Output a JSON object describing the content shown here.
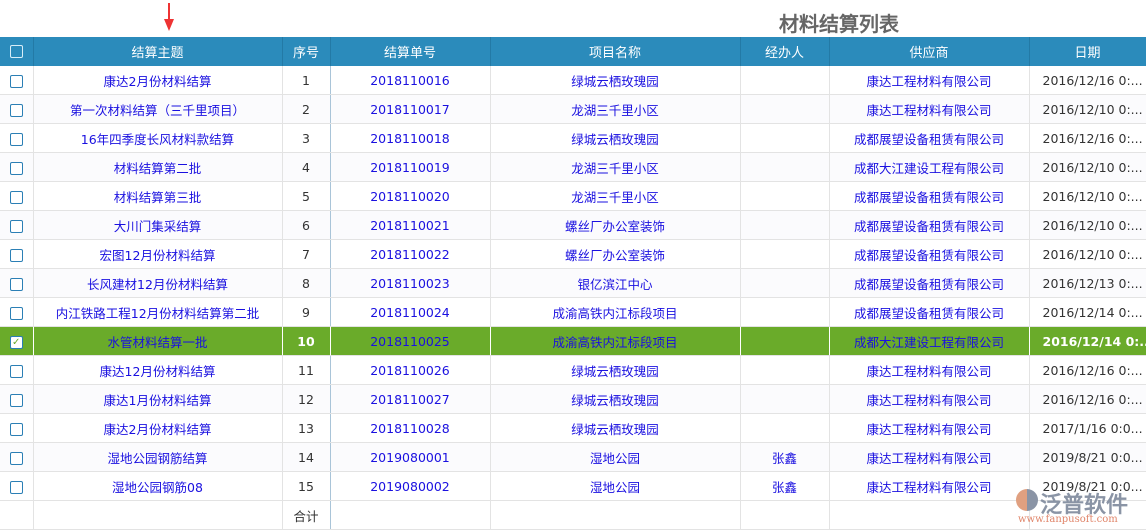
{
  "title": "材料结算列表",
  "columns": [
    "结算主题",
    "序号",
    "结算单号",
    "项目名称",
    "经办人",
    "供应商",
    "日期"
  ],
  "rows": [
    [
      "康达2月份材料结算",
      "1",
      "2018110016",
      "绿城云栖玫瑰园",
      "",
      "康达工程材料有限公司",
      "2016/12/16 0:..."
    ],
    [
      "第一次材料结算（三千里项目）",
      "2",
      "2018110017",
      "龙湖三千里小区",
      "",
      "康达工程材料有限公司",
      "2016/12/10 0:..."
    ],
    [
      "16年四季度长风材料款结算",
      "3",
      "2018110018",
      "绿城云栖玫瑰园",
      "",
      "成都展望设备租赁有限公司",
      "2016/12/16 0:..."
    ],
    [
      "材料结算第二批",
      "4",
      "2018110019",
      "龙湖三千里小区",
      "",
      "成都大江建设工程有限公司",
      "2016/12/10 0:..."
    ],
    [
      "材料结算第三批",
      "5",
      "2018110020",
      "龙湖三千里小区",
      "",
      "成都展望设备租赁有限公司",
      "2016/12/10 0:..."
    ],
    [
      "大川门集采结算",
      "6",
      "2018110021",
      "螺丝厂办公室装饰",
      "",
      "成都展望设备租赁有限公司",
      "2016/12/10 0:..."
    ],
    [
      "宏图12月份材料结算",
      "7",
      "2018110022",
      "螺丝厂办公室装饰",
      "",
      "成都展望设备租赁有限公司",
      "2016/12/10 0:..."
    ],
    [
      "长风建材12月份材料结算",
      "8",
      "2018110023",
      "银亿滨江中心",
      "",
      "成都展望设备租赁有限公司",
      "2016/12/13 0:..."
    ],
    [
      "内江铁路工程12月份材料结算第二批",
      "9",
      "2018110024",
      "成渝高铁内江标段项目",
      "",
      "成都展望设备租赁有限公司",
      "2016/12/14 0:..."
    ],
    [
      "水管材料结算一批",
      "10",
      "2018110025",
      "成渝高铁内江标段项目",
      "",
      "成都大江建设工程有限公司",
      "2016/12/14 0:..."
    ],
    [
      "康达12月份材料结算",
      "11",
      "2018110026",
      "绿城云栖玫瑰园",
      "",
      "康达工程材料有限公司",
      "2016/12/16 0:..."
    ],
    [
      "康达1月份材料结算",
      "12",
      "2018110027",
      "绿城云栖玫瑰园",
      "",
      "康达工程材料有限公司",
      "2016/12/16 0:..."
    ],
    [
      "康达2月份材料结算",
      "13",
      "2018110028",
      "绿城云栖玫瑰园",
      "",
      "康达工程材料有限公司",
      "2017/1/16 0:0..."
    ],
    [
      "湿地公园钢筋结算",
      "14",
      "2019080001",
      "湿地公园",
      "张鑫",
      "康达工程材料有限公司",
      "2019/8/21 0:0..."
    ],
    [
      "湿地公园钢筋08",
      "15",
      "2019080002",
      "湿地公园",
      "张鑫",
      "康达工程材料有限公司",
      "2019/8/21 0:0..."
    ]
  ],
  "selected_row": 10,
  "footer": {
    "total_label": "合计"
  },
  "logo": {
    "name": "泛普软件",
    "url": "www.fanpusoft.com"
  },
  "colors": {
    "header": "#2b8bbb",
    "selected": "#6aab2a",
    "link": "#1a10e0"
  }
}
